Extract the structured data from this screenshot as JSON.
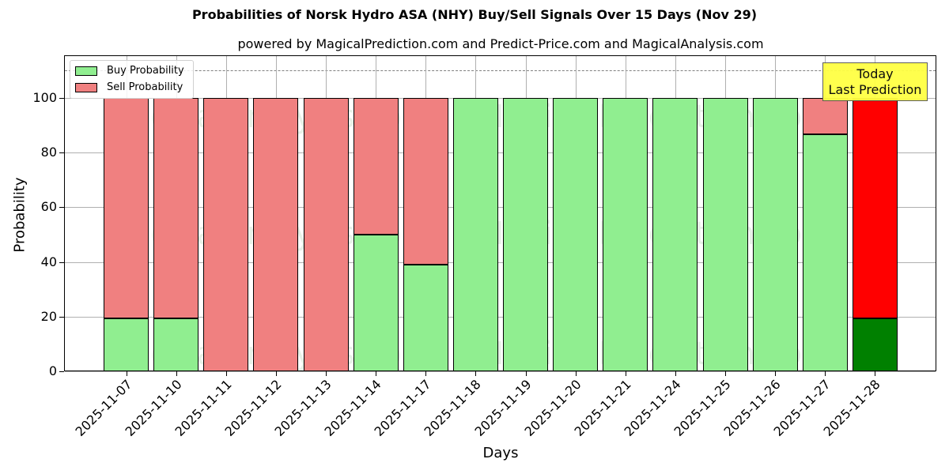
{
  "header": {
    "title": "Probabilities of Norsk Hydro ASA (NHY) Buy/Sell Signals Over 15 Days (Nov 29)",
    "subtitle": "powered by MagicalPrediction.com and Predict-Price.com and MagicalAnalysis.com"
  },
  "legend": {
    "buy_label": "Buy Probability",
    "sell_label": "Sell Probability"
  },
  "annotation": {
    "line1": "Today",
    "line2": "Last Prediction"
  },
  "watermarks": [
    "MagicalAnalysis.com",
    "MagicalPrediction.com"
  ],
  "colors": {
    "buy": "#90ee90",
    "sell": "#f08080",
    "today_buy": "#008000",
    "today_sell": "#ff0000",
    "annotation_bg": "#ffff44"
  },
  "chart_data": {
    "type": "bar",
    "stacked": true,
    "title": "Probabilities of Norsk Hydro ASA (NHY) Buy/Sell Signals Over 15 Days (Nov 29)",
    "subtitle": "powered by MagicalPrediction.com and Predict-Price.com and MagicalAnalysis.com",
    "xlabel": "Days",
    "ylabel": "Probability",
    "ylim": [
      0,
      115
    ],
    "yticks": [
      0,
      20,
      40,
      60,
      80,
      100
    ],
    "grid": true,
    "legend_position": "upper left",
    "reference_line": 110,
    "categories": [
      "2025-11-07",
      "2025-11-10",
      "2025-11-11",
      "2025-11-12",
      "2025-11-13",
      "2025-11-14",
      "2025-11-17",
      "2025-11-18",
      "2025-11-19",
      "2025-11-20",
      "2025-11-21",
      "2025-11-24",
      "2025-11-25",
      "2025-11-26",
      "2025-11-27",
      "2025-11-28"
    ],
    "series": [
      {
        "name": "Buy Probability",
        "values": [
          19.4,
          19.4,
          0,
          0,
          0,
          50.0,
          39.0,
          100,
          100,
          100,
          100,
          100,
          100,
          100,
          86.7,
          19.4
        ]
      },
      {
        "name": "Sell Probability",
        "values": [
          80.6,
          80.6,
          100,
          100,
          100,
          50.0,
          61.0,
          0,
          0,
          0,
          0,
          0,
          0,
          0,
          13.3,
          80.6
        ]
      }
    ],
    "annotations": [
      {
        "text": "Today\nLast Prediction",
        "x": "2025-11-28"
      }
    ]
  }
}
